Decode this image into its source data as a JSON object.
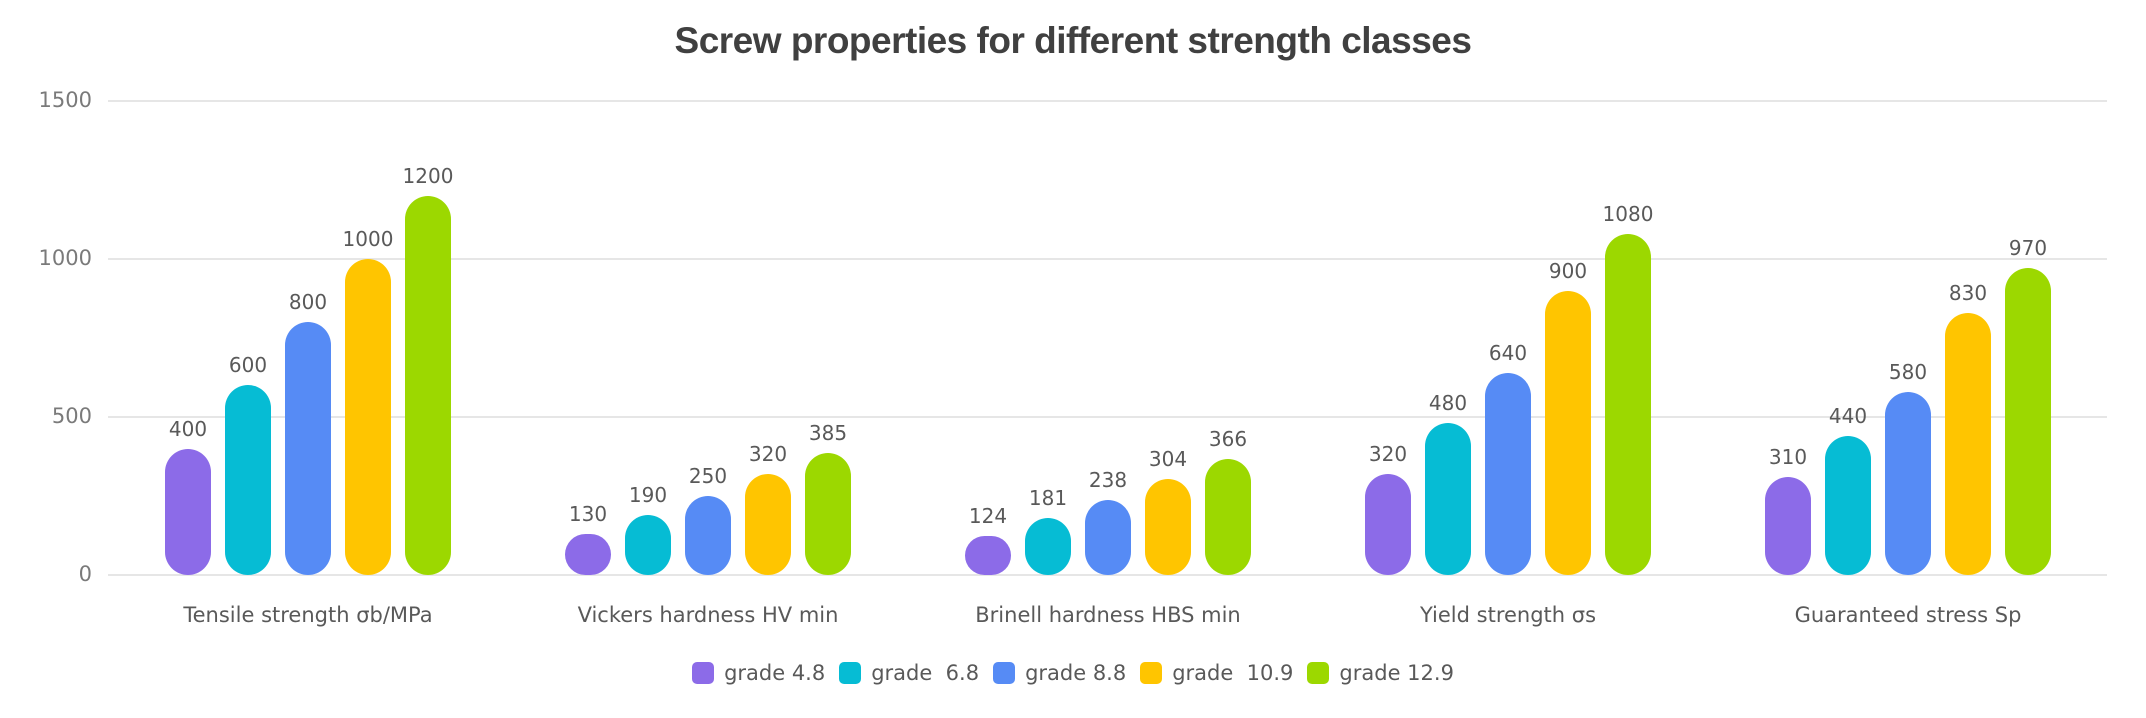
{
  "chart_data": {
    "type": "bar",
    "title": "Screw properties for different strength classes",
    "xlabel": "",
    "ylabel": "",
    "ylim": [
      0,
      1500
    ],
    "yticks": [
      0,
      500,
      1000,
      1500
    ],
    "grid": true,
    "legend_position": "bottom",
    "categories": [
      "Tensile strength σb/MPa",
      "Vickers hardness HV min",
      "Brinell hardness HBS min",
      "Yield strength σs",
      "Guaranteed stress Sp"
    ],
    "series": [
      {
        "name": "grade 4.8",
        "color": "#8c6be8",
        "values": [
          400,
          130,
          124,
          320,
          310
        ]
      },
      {
        "name": "grade  6.8",
        "color": "#06bcd4",
        "values": [
          600,
          190,
          181,
          480,
          440
        ]
      },
      {
        "name": "grade 8.8",
        "color": "#568bf5",
        "values": [
          800,
          250,
          238,
          640,
          580
        ]
      },
      {
        "name": "grade  10.9",
        "color": "#ffc500",
        "values": [
          1000,
          320,
          304,
          900,
          830
        ]
      },
      {
        "name": "grade 12.9",
        "color": "#9cd800",
        "values": [
          1200,
          385,
          366,
          1080,
          970
        ]
      }
    ],
    "data_labels": true
  }
}
